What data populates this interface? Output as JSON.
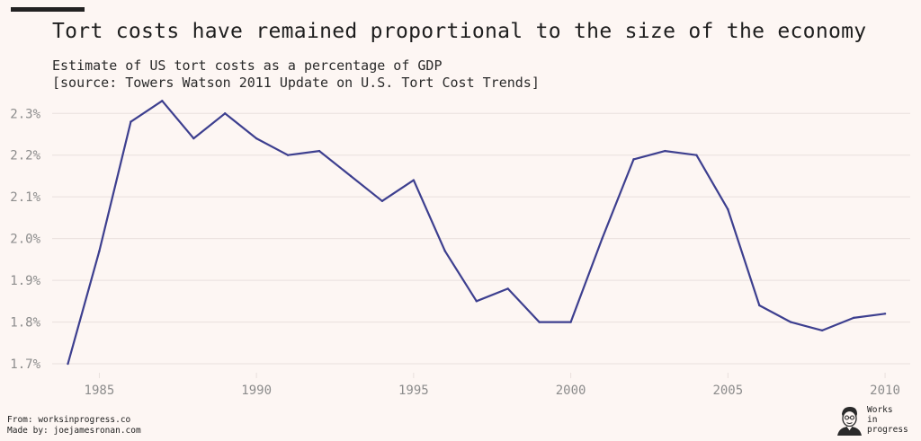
{
  "header": {
    "title": "Tort costs have remained proportional to the size of the economy",
    "subtitle_line1": "Estimate of US tort costs as a percentage of GDP",
    "subtitle_line2": "[source: Towers Watson 2011 Update on U.S. Tort Cost Trends]"
  },
  "footer": {
    "from": "From: worksinprogress.co",
    "made_by": "Made by: joejamesronan.com"
  },
  "logo": {
    "line1": "Works",
    "line2": "in",
    "line3": "progress",
    "icon": "portrait-icon"
  },
  "colors": {
    "background": "#fdf6f3",
    "line": "#3d3f8f",
    "grid": "#e9e0dd",
    "tick_text": "#8c8c8c",
    "accent": "#222222"
  },
  "chart_data": {
    "type": "line",
    "title": "Tort costs have remained proportional to the size of the economy",
    "xlabel": "",
    "ylabel": "",
    "grid": true,
    "legend": "none",
    "xlim": [
      1983.5,
      2010.8
    ],
    "ylim": [
      1.685,
      2.335
    ],
    "x_ticks": [
      1985,
      1990,
      1995,
      2000,
      2005,
      2010
    ],
    "x_tick_labels": [
      "1985",
      "1990",
      "1995",
      "2000",
      "2005",
      "2010"
    ],
    "y_ticks": [
      1.7,
      1.8,
      1.9,
      2.0,
      2.1,
      2.2,
      2.3
    ],
    "y_tick_labels": [
      "1.7%",
      "1.8%",
      "1.9%",
      "2.0%",
      "2.1%",
      "2.2%",
      "2.3%"
    ],
    "series": [
      {
        "name": "Tort costs as % of GDP",
        "x": [
          1984,
          1985,
          1986,
          1987,
          1988,
          1989,
          1990,
          1991,
          1992,
          1993,
          1994,
          1995,
          1996,
          1997,
          1998,
          1999,
          2000,
          2001,
          2002,
          2003,
          2004,
          2005,
          2006,
          2007,
          2008,
          2009,
          2010
        ],
        "values": [
          1.7,
          1.97,
          2.28,
          2.33,
          2.24,
          2.3,
          2.24,
          2.2,
          2.21,
          2.15,
          2.09,
          2.14,
          1.97,
          1.85,
          1.88,
          1.8,
          1.8,
          2.0,
          2.19,
          2.21,
          2.2,
          2.07,
          1.84,
          1.8,
          1.78,
          1.81,
          1.82
        ]
      }
    ]
  }
}
